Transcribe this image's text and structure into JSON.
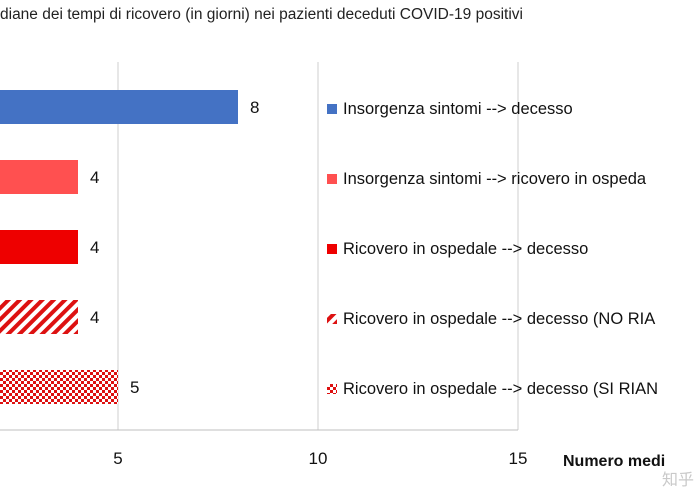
{
  "chart_data": {
    "type": "bar",
    "orientation": "horizontal",
    "title": "diane dei tempi di ricovero (in giorni) nei pazienti deceduti COVID-19 positivi",
    "xlabel": "Numero medi",
    "xlim": [
      0,
      15
    ],
    "xticks": [
      "5",
      "10",
      "15"
    ],
    "grid": "vertical",
    "legend_position": "right",
    "series": [
      {
        "name": "Insorgenza sintomi --> decesso",
        "value": 8,
        "value_label": "8",
        "color": "#4472c4",
        "pattern": "solid"
      },
      {
        "name": "Insorgenza sintomi --> ricovero in ospeda",
        "value": 4,
        "value_label": "4",
        "color": "#ff5050",
        "pattern": "solid"
      },
      {
        "name": "Ricovero in ospedale --> decesso",
        "value": 4,
        "value_label": "4",
        "color": "#ee0000",
        "pattern": "solid"
      },
      {
        "name": "Ricovero in ospedale --> decesso (NO RIA",
        "value": 4,
        "value_label": "4",
        "color": "#dd1111",
        "pattern": "diagonal-stripes"
      },
      {
        "name": "Ricovero in ospedale --> decesso (SI RIAN",
        "value": 5,
        "value_label": "5",
        "color": "#dd1111",
        "pattern": "checkerboard"
      }
    ]
  },
  "watermark": "知乎"
}
